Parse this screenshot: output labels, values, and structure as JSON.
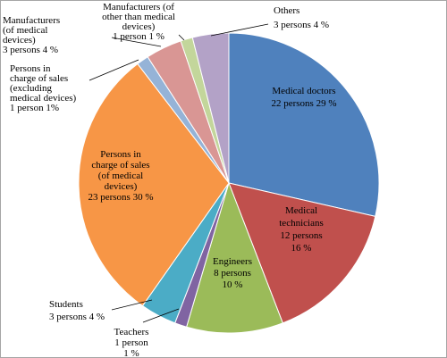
{
  "chart_data": {
    "type": "pie",
    "title": "",
    "slices": [
      {
        "label": [
          "Medical doctors",
          "22 persons 29 %"
        ],
        "value": 22,
        "color": "#4f81bd"
      },
      {
        "label": [
          "Medical",
          "technicians",
          "12 persons",
          "16 %"
        ],
        "value": 12,
        "color": "#c0504d"
      },
      {
        "label": [
          "Engineers",
          "8 persons",
          "10 %"
        ],
        "value": 8,
        "color": "#9bbb59"
      },
      {
        "label": [
          "Teachers",
          "1 person",
          "1 %"
        ],
        "value": 1,
        "color": "#8064a2"
      },
      {
        "label": [
          "Students",
          "3 persons 4 %"
        ],
        "value": 3,
        "color": "#4bacc6"
      },
      {
        "label": [
          "Persons in",
          "charge of sales",
          "(of medical",
          "devices)",
          "23 persons 30 %"
        ],
        "value": 23,
        "color": "#f79646"
      },
      {
        "label": [
          "Persons in",
          "charge of sales",
          "(excluding",
          "medical devices)",
          "1 person 1%"
        ],
        "value": 1,
        "color": "#95b3d7"
      },
      {
        "label": [
          "Manufacturers",
          "(of medical",
          "devices)",
          "3 persons 4 %"
        ],
        "value": 3,
        "color": "#d99694"
      },
      {
        "label": [
          "Manufacturers (of",
          "other than medical",
          "devices)",
          "1 person 1 %"
        ],
        "value": 1,
        "color": "#c3d69b"
      },
      {
        "label": [
          "Others",
          "3 persons 4 %"
        ],
        "value": 3,
        "color": "#b3a2c7"
      }
    ]
  }
}
